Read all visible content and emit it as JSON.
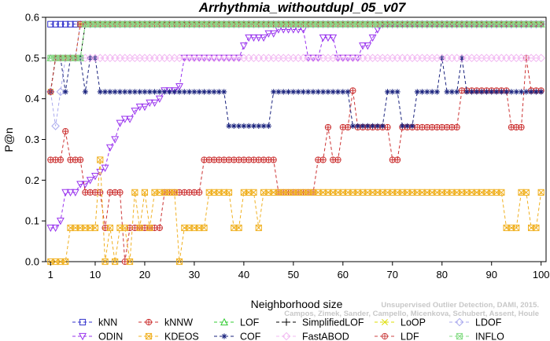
{
  "chart_data": {
    "type": "line",
    "title": "Arrhythmia_withoutdupl_05_v07",
    "xlabel": "Neighborhood size",
    "ylabel": "P@n",
    "xlim": [
      1,
      100
    ],
    "ylim": [
      0,
      0.6
    ],
    "xticks": [
      1,
      10,
      20,
      30,
      40,
      50,
      60,
      70,
      80,
      90,
      100
    ],
    "yticks": [
      0.0,
      0.1,
      0.2,
      0.3,
      0.4,
      0.5,
      0.6
    ],
    "grid": false,
    "legend_position": "bottom",
    "series": [
      {
        "name": "kNN",
        "color": "#3333cc",
        "marker": "square",
        "x": [
          1,
          5,
          6,
          7,
          8,
          100
        ],
        "y": [
          0.583,
          0.583,
          0.583,
          0.583,
          0.583,
          0.583
        ]
      },
      {
        "name": "kNNW",
        "color": "#cc3333",
        "marker": "circle-plus",
        "x": [
          1,
          2,
          3,
          4,
          5,
          6,
          7,
          8,
          9,
          10,
          11,
          12,
          13,
          14,
          15,
          16,
          17,
          18,
          19,
          20,
          21,
          22,
          23,
          24,
          25,
          26,
          27,
          28,
          29,
          30,
          31,
          32,
          33,
          34,
          35,
          36,
          37,
          38,
          39,
          40,
          41,
          42,
          43,
          44,
          45,
          46,
          47,
          48,
          49,
          50,
          51,
          52,
          53,
          54,
          55,
          56,
          57,
          58,
          59,
          60,
          61,
          62,
          63,
          64,
          65,
          66,
          67,
          68,
          69,
          70,
          71,
          72,
          73,
          74,
          75,
          76,
          77,
          78,
          79,
          80,
          81,
          82,
          83,
          84,
          85,
          86,
          87,
          88,
          89,
          90,
          91,
          92,
          93,
          94,
          95,
          96,
          97,
          98,
          99,
          100
        ],
        "y": [
          0.25,
          0.25,
          0.25,
          0.32,
          0.25,
          0.25,
          0.25,
          0.17,
          0.17,
          0.17,
          0.17,
          0.083,
          0.17,
          0.17,
          0.17,
          0.0,
          0.083,
          0.083,
          0.083,
          0.083,
          0.083,
          0.083,
          0.083,
          0.17,
          0.17,
          0.17,
          0.17,
          0.17,
          0.17,
          0.17,
          0.17,
          0.25,
          0.25,
          0.25,
          0.25,
          0.25,
          0.25,
          0.25,
          0.25,
          0.25,
          0.25,
          0.25,
          0.25,
          0.25,
          0.25,
          0.25,
          0.17,
          0.17,
          0.17,
          0.17,
          0.17,
          0.17,
          0.17,
          0.17,
          0.25,
          0.25,
          0.33,
          0.25,
          0.25,
          0.33,
          0.33,
          0.42,
          0.33,
          0.33,
          0.33,
          0.33,
          0.33,
          0.33,
          0.33,
          0.25,
          0.25,
          0.33,
          0.33,
          0.33,
          0.33,
          0.33,
          0.33,
          0.33,
          0.33,
          0.33,
          0.33,
          0.33,
          0.33,
          0.42,
          0.42,
          0.42,
          0.42,
          0.42,
          0.42,
          0.42,
          0.42,
          0.42,
          0.42,
          0.33,
          0.33,
          0.33,
          0.5,
          0.42,
          0.42,
          0.42
        ]
      },
      {
        "name": "LOF",
        "color": "#33cc33",
        "marker": "triangle-up",
        "x": [
          1,
          2,
          3,
          4,
          5,
          6,
          7,
          8,
          9,
          10,
          100
        ],
        "y": [
          0.5,
          0.5,
          0.5,
          0.5,
          0.5,
          0.5,
          0.5,
          0.583,
          0.583,
          0.583,
          0.583
        ]
      },
      {
        "name": "SimplifiedLOF",
        "color": "#000000",
        "marker": "plus",
        "x": [
          1,
          2,
          3,
          4,
          5,
          6,
          7,
          8,
          9,
          100
        ],
        "y": [
          0.417,
          0.5,
          0.5,
          0.5,
          0.5,
          0.5,
          0.5,
          0.583,
          0.583,
          0.583
        ]
      },
      {
        "name": "LoOP",
        "color": "#dddd00",
        "marker": "x",
        "x": [
          1,
          2,
          3,
          4,
          5,
          6,
          7,
          8,
          9,
          100
        ],
        "y": [
          0.417,
          0.5,
          0.5,
          0.5,
          0.5,
          0.5,
          0.583,
          0.583,
          0.583,
          0.583
        ]
      },
      {
        "name": "LDOF",
        "color": "#aaaaee",
        "marker": "diamond",
        "x": [
          1,
          2,
          3,
          4,
          5,
          6,
          7,
          8,
          100
        ],
        "y": [
          0.417,
          0.333,
          0.417,
          0.5,
          0.5,
          0.5,
          0.583,
          0.583,
          0.583
        ]
      },
      {
        "name": "ODIN",
        "color": "#9933ee",
        "marker": "triangle-down",
        "x": [
          1,
          2,
          3,
          4,
          5,
          6,
          7,
          8,
          9,
          10,
          11,
          12,
          13,
          14,
          15,
          16,
          17,
          18,
          19,
          20,
          21,
          22,
          23,
          24,
          25,
          26,
          27,
          28,
          29,
          30,
          31,
          32,
          33,
          34,
          35,
          36,
          37,
          38,
          39,
          40,
          41,
          42,
          43,
          44,
          45,
          46,
          47,
          48,
          49,
          50,
          51,
          52,
          53,
          54,
          55,
          56,
          57,
          58,
          59,
          60,
          61,
          62,
          63,
          64,
          65,
          66,
          67,
          68,
          69,
          70,
          71,
          72,
          73,
          74,
          75,
          76,
          77,
          78,
          79,
          80,
          81,
          82,
          83,
          84,
          85,
          86,
          87,
          88,
          89,
          90,
          91,
          92,
          93,
          94,
          95,
          96,
          97,
          98,
          99,
          100
        ],
        "y": [
          0.083,
          0.083,
          0.1,
          0.17,
          0.17,
          0.17,
          0.19,
          0.19,
          0.2,
          0.21,
          0.22,
          0.23,
          0.28,
          0.3,
          0.34,
          0.35,
          0.35,
          0.37,
          0.38,
          0.38,
          0.39,
          0.39,
          0.4,
          0.42,
          0.42,
          0.42,
          0.43,
          0.5,
          0.5,
          0.5,
          0.5,
          0.5,
          0.5,
          0.5,
          0.5,
          0.5,
          0.5,
          0.5,
          0.5,
          0.53,
          0.55,
          0.55,
          0.55,
          0.55,
          0.56,
          0.56,
          0.57,
          0.57,
          0.57,
          0.57,
          0.57,
          0.57,
          0.5,
          0.5,
          0.5,
          0.55,
          0.55,
          0.55,
          0.5,
          0.5,
          0.5,
          0.5,
          0.5,
          0.53,
          0.53,
          0.55,
          0.57,
          0.583,
          0.583,
          0.583,
          0.583,
          0.583,
          0.583,
          0.583,
          0.583,
          0.583,
          0.583,
          0.583,
          0.583,
          0.583,
          0.583,
          0.583,
          0.583,
          0.583,
          0.583,
          0.583,
          0.583,
          0.583,
          0.583,
          0.583,
          0.583,
          0.583,
          0.583,
          0.583,
          0.583,
          0.583,
          0.583,
          0.583,
          0.583,
          0.583
        ]
      },
      {
        "name": "KDEOS",
        "color": "#f0b020",
        "marker": "square-x",
        "x": [
          1,
          2,
          3,
          4,
          5,
          6,
          7,
          8,
          9,
          10,
          11,
          12,
          13,
          14,
          15,
          16,
          17,
          18,
          19,
          20,
          21,
          22,
          23,
          24,
          25,
          26,
          27,
          28,
          29,
          30,
          31,
          32,
          33,
          34,
          35,
          36,
          37,
          38,
          39,
          40,
          41,
          42,
          43,
          44,
          45,
          46,
          47,
          48,
          49,
          50,
          51,
          52,
          53,
          54,
          55,
          56,
          57,
          58,
          59,
          60,
          61,
          62,
          63,
          64,
          65,
          66,
          67,
          68,
          69,
          70,
          71,
          72,
          73,
          74,
          75,
          76,
          77,
          78,
          79,
          80,
          81,
          82,
          83,
          84,
          85,
          86,
          87,
          88,
          89,
          90,
          91,
          92,
          93,
          94,
          95,
          96,
          97,
          98,
          99,
          100
        ],
        "y": [
          0.0,
          0.0,
          0.0,
          0.0,
          0.083,
          0.083,
          0.083,
          0.083,
          0.083,
          0.083,
          0.25,
          0.0,
          0.083,
          0.0,
          0.083,
          0.083,
          0.0,
          0.17,
          0.083,
          0.17,
          0.083,
          0.17,
          0.17,
          0.17,
          0.17,
          0.17,
          0.0,
          0.083,
          0.083,
          0.083,
          0.083,
          0.083,
          0.17,
          0.17,
          0.17,
          0.17,
          0.17,
          0.083,
          0.083,
          0.17,
          0.17,
          0.17,
          0.083,
          0.17,
          0.17,
          0.17,
          0.17,
          0.17,
          0.17,
          0.17,
          0.17,
          0.17,
          0.17,
          0.17,
          0.17,
          0.17,
          0.17,
          0.17,
          0.17,
          0.17,
          0.17,
          0.17,
          0.17,
          0.17,
          0.17,
          0.17,
          0.17,
          0.17,
          0.17,
          0.17,
          0.17,
          0.17,
          0.17,
          0.17,
          0.17,
          0.17,
          0.17,
          0.17,
          0.17,
          0.17,
          0.17,
          0.17,
          0.17,
          0.17,
          0.17,
          0.17,
          0.17,
          0.17,
          0.17,
          0.17,
          0.17,
          0.17,
          0.083,
          0.083,
          0.083,
          0.17,
          0.17,
          0.083,
          0.083,
          0.17
        ]
      },
      {
        "name": "COF",
        "color": "#1a237e",
        "marker": "asterisk",
        "x": [
          1,
          2,
          3,
          4,
          5,
          6,
          7,
          8,
          9,
          10,
          11,
          12,
          13,
          14,
          15,
          16,
          17,
          18,
          19,
          20,
          21,
          22,
          23,
          24,
          25,
          26,
          27,
          28,
          29,
          30,
          31,
          32,
          33,
          34,
          35,
          36,
          37,
          38,
          39,
          40,
          41,
          42,
          43,
          44,
          45,
          46,
          47,
          48,
          49,
          50,
          51,
          52,
          53,
          54,
          55,
          56,
          57,
          58,
          59,
          60,
          61,
          62,
          63,
          64,
          65,
          66,
          67,
          68,
          69,
          70,
          71,
          72,
          73,
          74,
          75,
          76,
          77,
          78,
          79,
          80,
          81,
          82,
          83,
          84,
          85,
          86,
          87,
          88,
          89,
          90,
          91,
          92,
          93,
          94,
          95,
          96,
          97,
          98,
          99,
          100
        ],
        "y": [
          0.417,
          0.5,
          0.5,
          0.417,
          0.5,
          0.5,
          0.5,
          0.417,
          0.5,
          0.5,
          0.417,
          0.417,
          0.417,
          0.417,
          0.417,
          0.417,
          0.417,
          0.417,
          0.417,
          0.417,
          0.417,
          0.417,
          0.417,
          0.417,
          0.417,
          0.417,
          0.417,
          0.417,
          0.417,
          0.417,
          0.417,
          0.417,
          0.417,
          0.417,
          0.417,
          0.417,
          0.333,
          0.333,
          0.333,
          0.333,
          0.333,
          0.333,
          0.333,
          0.333,
          0.333,
          0.417,
          0.417,
          0.417,
          0.417,
          0.417,
          0.417,
          0.417,
          0.417,
          0.417,
          0.417,
          0.417,
          0.417,
          0.417,
          0.417,
          0.417,
          0.417,
          0.333,
          0.333,
          0.333,
          0.333,
          0.333,
          0.333,
          0.333,
          0.417,
          0.417,
          0.417,
          0.333,
          0.333,
          0.333,
          0.417,
          0.417,
          0.417,
          0.417,
          0.417,
          0.5,
          0.417,
          0.417,
          0.417,
          0.5,
          0.417,
          0.417,
          0.417,
          0.417,
          0.417,
          0.417,
          0.417,
          0.417,
          0.417,
          0.417,
          0.417,
          0.417,
          0.417,
          0.417,
          0.417,
          0.417
        ]
      },
      {
        "name": "FastABOD",
        "color": "#f2b8f2",
        "marker": "diamond",
        "x": [
          1,
          5,
          6,
          7,
          8,
          9,
          10,
          100
        ],
        "y": [
          0.5,
          0.5,
          0.5,
          0.5,
          0.5,
          0.5,
          0.5,
          0.5
        ]
      },
      {
        "name": "LDF",
        "color": "#cc4444",
        "marker": "circle-plus",
        "x": [
          1,
          2,
          3,
          4,
          5,
          6,
          7,
          8,
          9,
          10,
          100
        ],
        "y": [
          0.417,
          0.5,
          0.5,
          0.5,
          0.5,
          0.5,
          0.583,
          0.583,
          0.583,
          0.583,
          0.583
        ]
      },
      {
        "name": "INFLO",
        "color": "#88dd88",
        "marker": "square-x",
        "x": [
          1,
          2,
          3,
          4,
          5,
          6,
          7,
          8,
          9,
          10,
          100
        ],
        "y": [
          0.5,
          0.5,
          0.5,
          0.5,
          0.5,
          0.5,
          0.5,
          0.583,
          0.583,
          0.583,
          0.583
        ]
      }
    ]
  },
  "attribution": {
    "line1": "Unsupervised Outlier Detection, DAMI, 2015.",
    "line2": "Campos, Zimek, Sander, Campello, Micenkova, Schubert, Assent, Houle"
  },
  "legend_rows": [
    [
      "kNN",
      "kNNW",
      "LOF",
      "SimplifiedLOF",
      "LoOP",
      "LDOF"
    ],
    [
      "ODIN",
      "KDEOS",
      "COF",
      "FastABOD",
      "LDF",
      "INFLO"
    ]
  ]
}
